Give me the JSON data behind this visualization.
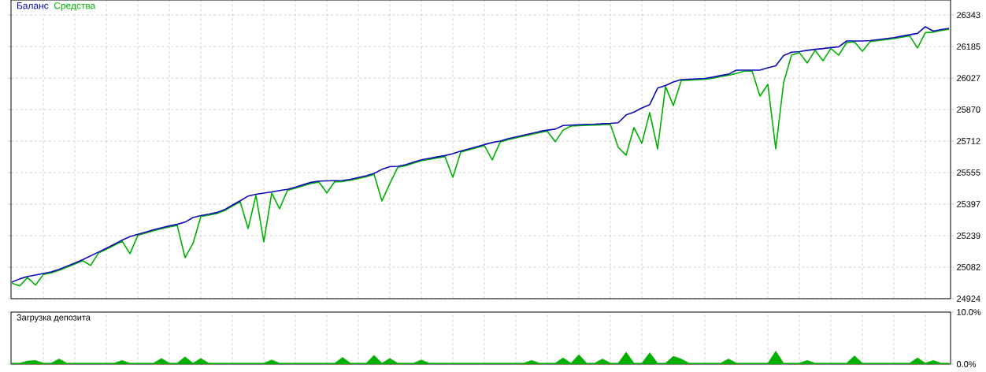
{
  "chart_data": [
    {
      "type": "line",
      "legend": "top left",
      "grid": true,
      "tick_labels": "y",
      "categories": [
        null,
        null,
        null,
        null,
        null,
        null,
        null,
        null,
        null,
        null,
        null,
        null,
        null,
        null,
        null,
        null,
        null,
        null,
        null,
        null,
        null,
        null,
        null,
        null,
        null,
        null,
        null,
        null,
        null,
        null,
        null,
        null,
        null,
        null,
        null,
        null,
        null,
        null,
        null,
        null,
        null,
        null,
        null,
        null,
        null,
        null,
        null,
        null,
        null,
        null,
        null,
        null,
        null,
        null,
        null,
        null,
        null,
        null,
        null,
        null,
        null,
        null,
        null,
        null,
        null,
        null,
        null,
        null,
        null,
        null,
        null,
        null,
        null,
        null,
        null,
        null,
        null,
        null,
        null,
        null,
        null,
        null,
        null,
        null,
        null,
        null,
        null,
        null,
        null,
        null,
        null,
        null,
        null,
        null,
        null,
        null,
        null,
        null,
        null,
        null,
        null,
        null,
        null,
        null,
        null,
        null,
        null,
        null,
        null,
        null,
        null,
        null,
        null,
        null,
        null,
        null,
        null,
        null,
        null,
        null
      ],
      "ylim": [
        24924,
        26418
      ],
      "yticks": [
        24924,
        25082,
        25239,
        25397,
        25555,
        25712,
        25870,
        26027,
        26185,
        26343
      ],
      "series": [
        {
          "name": "Средства",
          "color": "#00b000",
          "values": [
            25002,
            24988,
            25030,
            24992,
            25045,
            25053,
            25066,
            25082,
            25097,
            25114,
            25090,
            25152,
            25171,
            25191,
            25212,
            25149,
            25241,
            25252,
            25264,
            25274,
            25283,
            25291,
            25129,
            25200,
            25335,
            25342,
            25350,
            25364,
            25387,
            25409,
            25275,
            25441,
            25208,
            25453,
            25374,
            25466,
            25477,
            25489,
            25501,
            25507,
            25453,
            25509,
            25510,
            25516,
            25525,
            25534,
            25546,
            25413,
            25500,
            25581,
            25589,
            25602,
            25614,
            25621,
            25628,
            25635,
            25531,
            25657,
            25668,
            25679,
            25690,
            25618,
            25707,
            25719,
            25728,
            25737,
            25746,
            25755,
            25762,
            25709,
            25767,
            25787,
            25789,
            25791,
            25792,
            25794,
            25796,
            25681,
            25642,
            25780,
            25701,
            25855,
            25673,
            25985,
            25890,
            26015,
            26017,
            26019,
            26021,
            26027,
            26035,
            26042,
            26050,
            26062,
            26062,
            25937,
            25996,
            25673,
            26004,
            26142,
            26155,
            26103,
            26166,
            26114,
            26175,
            26142,
            26205,
            26208,
            26162,
            26210,
            26215,
            26220,
            26225,
            26232,
            26239,
            26178,
            26255,
            26257,
            26265,
            26271
          ]
        },
        {
          "name": "Баланс",
          "color": "#0c0cb4",
          "values": [
            25007,
            25023,
            25035,
            25042,
            25050,
            25058,
            25071,
            25087,
            25102,
            25119,
            25138,
            25157,
            25176,
            25196,
            25217,
            25234,
            25246,
            25257,
            25269,
            25279,
            25288,
            25296,
            25307,
            25330,
            25340,
            25347,
            25355,
            25369,
            25392,
            25414,
            25437,
            25446,
            25452,
            25458,
            25465,
            25471,
            25482,
            25494,
            25506,
            25512,
            25513,
            25514,
            25515,
            25521,
            25530,
            25539,
            25551,
            25571,
            25584,
            25586,
            25594,
            25607,
            25619,
            25626,
            25633,
            25640,
            25649,
            25662,
            25673,
            25684,
            25695,
            25705,
            25712,
            25724,
            25733,
            25742,
            25751,
            25760,
            25767,
            25772,
            25790,
            25792,
            25794,
            25796,
            25797,
            25799,
            25801,
            25804,
            25843,
            25857,
            25878,
            25895,
            25977,
            25990,
            26008,
            26020,
            26022,
            26024,
            26026,
            26032,
            26040,
            26047,
            26067,
            26067,
            26067,
            26067,
            26079,
            26089,
            26140,
            26157,
            26160,
            26166,
            26171,
            26175,
            26180,
            26184,
            26213,
            26213,
            26213,
            26215,
            26220,
            26225,
            26230,
            26237,
            26244,
            26251,
            26284,
            26262,
            26270,
            26276
          ]
        }
      ]
    },
    {
      "type": "area",
      "title": "Загрузка депозита",
      "grid": "x",
      "tick_labels": "y",
      "categories": [
        null,
        null,
        null,
        null,
        null,
        null,
        null,
        null,
        null,
        null,
        null,
        null,
        null,
        null,
        null,
        null,
        null,
        null,
        null,
        null,
        null,
        null,
        null,
        null,
        null,
        null,
        null,
        null,
        null,
        null,
        null,
        null,
        null,
        null,
        null,
        null,
        null,
        null,
        null,
        null,
        null,
        null,
        null,
        null,
        null,
        null,
        null,
        null,
        null,
        null,
        null,
        null,
        null,
        null,
        null,
        null,
        null,
        null,
        null,
        null,
        null,
        null,
        null,
        null,
        null,
        null,
        null,
        null,
        null,
        null,
        null,
        null,
        null,
        null,
        null,
        null,
        null,
        null,
        null,
        null,
        null,
        null,
        null,
        null,
        null,
        null,
        null,
        null,
        null,
        null,
        null,
        null,
        null,
        null,
        null,
        null,
        null,
        null,
        null,
        null,
        null,
        null,
        null,
        null,
        null,
        null,
        null,
        null,
        null,
        null,
        null,
        null,
        null,
        null,
        null,
        null,
        null,
        null,
        null,
        null
      ],
      "ylim": [
        0,
        10
      ],
      "yticks": [
        {
          "value": 0,
          "label": "0.0%"
        },
        {
          "value": 10,
          "label": "10.0%"
        }
      ],
      "series": [
        {
          "color": "#00b000",
          "values": [
            0.2,
            0.2,
            0.6,
            0.7,
            0.2,
            0.2,
            1.0,
            0.2,
            0.2,
            0.2,
            0.2,
            0.2,
            0.2,
            0.2,
            0.7,
            0.2,
            0.2,
            0.2,
            0.2,
            1.1,
            0.2,
            0.2,
            1.4,
            0.2,
            1.1,
            0.2,
            0.2,
            0.2,
            0.2,
            0.2,
            0.2,
            0.2,
            0.2,
            0.8,
            0.2,
            0.2,
            0.2,
            0.2,
            0.2,
            0.2,
            0.2,
            0.2,
            1.3,
            0.2,
            0.2,
            0.2,
            1.7,
            0.2,
            1.1,
            0.2,
            0.2,
            0.2,
            0.8,
            0.2,
            0.2,
            0.2,
            0.2,
            0.2,
            0.2,
            0.2,
            0.2,
            0.2,
            0.2,
            0.2,
            0.2,
            0.2,
            0.7,
            0.2,
            0.2,
            0.2,
            1.2,
            0.2,
            1.8,
            0.2,
            0.2,
            1.0,
            0.2,
            0.2,
            2.3,
            0.2,
            0.2,
            2.2,
            0.2,
            0.2,
            1.5,
            1.0,
            0.2,
            0.2,
            0.2,
            0.2,
            0.2,
            1.0,
            0.2,
            0.2,
            0.2,
            0.2,
            0.2,
            2.5,
            0.2,
            0.2,
            0.2,
            0.7,
            0.2,
            0.2,
            0.2,
            0.2,
            0.2,
            1.6,
            0.2,
            0.2,
            0.2,
            0.2,
            0.2,
            0.2,
            0.2,
            1.2,
            0.2,
            0.7,
            0.2,
            0.2
          ]
        }
      ]
    }
  ]
}
